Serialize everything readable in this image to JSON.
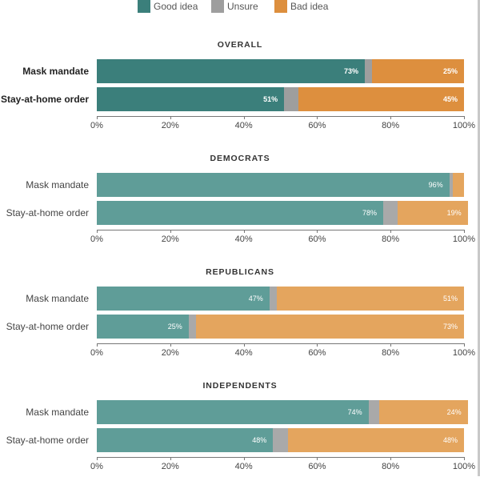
{
  "legend": [
    {
      "name": "Good idea",
      "color": "#3b7f7b"
    },
    {
      "name": "Unsure",
      "color": "#9e9e9e"
    },
    {
      "name": "Bad idea",
      "color": "#dd8f3e"
    }
  ],
  "chart_data": {
    "type": "bar",
    "orientation": "horizontal",
    "stacked": true,
    "xlim": [
      0,
      100
    ],
    "tick_labels": [
      "0%",
      "20%",
      "40%",
      "60%",
      "80%",
      "100%"
    ],
    "legend_position": "top-center",
    "panels": [
      {
        "title": "OVERALL",
        "categories": [
          "Mask mandate",
          "Stay-at-home order"
        ],
        "highlight": true,
        "series": [
          {
            "name": "Good idea",
            "values": [
              73,
              51
            ],
            "labels": [
              "73%",
              "51%"
            ]
          },
          {
            "name": "Unsure",
            "values": [
              2,
              4
            ],
            "labels": [
              "",
              ""
            ]
          },
          {
            "name": "Bad idea",
            "values": [
              25,
              45
            ],
            "labels": [
              "25%",
              "45%"
            ]
          }
        ]
      },
      {
        "title": "DEMOCRATS",
        "categories": [
          "Mask mandate",
          "Stay-at-home order"
        ],
        "highlight": false,
        "series": [
          {
            "name": "Good idea",
            "values": [
              96,
              78
            ],
            "labels": [
              "96%",
              "78%"
            ]
          },
          {
            "name": "Unsure",
            "values": [
              1,
              4
            ],
            "labels": [
              "",
              ""
            ]
          },
          {
            "name": "Bad idea",
            "values": [
              3,
              19
            ],
            "labels": [
              "",
              "19%"
            ]
          }
        ]
      },
      {
        "title": "REPUBLICANS",
        "categories": [
          "Mask mandate",
          "Stay-at-home order"
        ],
        "highlight": false,
        "series": [
          {
            "name": "Good idea",
            "values": [
              47,
              25
            ],
            "labels": [
              "47%",
              "25%"
            ]
          },
          {
            "name": "Unsure",
            "values": [
              2,
              2
            ],
            "labels": [
              "",
              ""
            ]
          },
          {
            "name": "Bad idea",
            "values": [
              51,
              73
            ],
            "labels": [
              "51%",
              "73%"
            ]
          }
        ]
      },
      {
        "title": "INDEPENDENTS",
        "categories": [
          "Mask mandate",
          "Stay-at-home order"
        ],
        "highlight": false,
        "series": [
          {
            "name": "Good idea",
            "values": [
              74,
              48
            ],
            "labels": [
              "74%",
              "48%"
            ]
          },
          {
            "name": "Unsure",
            "values": [
              3,
              4
            ],
            "labels": [
              "",
              ""
            ]
          },
          {
            "name": "Bad idea",
            "values": [
              24,
              48
            ],
            "labels": [
              "24%",
              "48%"
            ]
          }
        ]
      }
    ]
  },
  "colors": {
    "good_strong": "#3b7f7b",
    "good_light": "#5f9d98",
    "unsure_strong": "#9e9e9e",
    "unsure_light": "#a9a9a9",
    "bad_strong": "#dd8f3e",
    "bad_light": "#e4a55e"
  }
}
